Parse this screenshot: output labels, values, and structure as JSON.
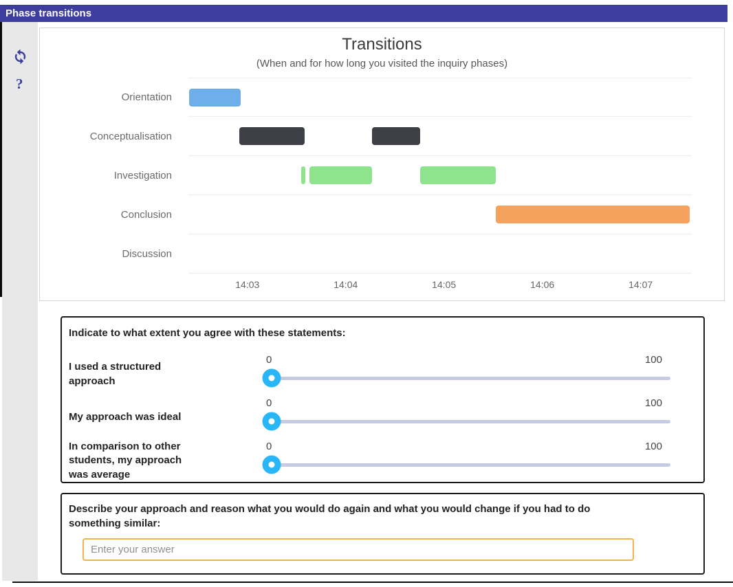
{
  "header": {
    "title": "Phase transitions"
  },
  "sidebar": {
    "refresh_icon": "refresh-icon",
    "help_label": "?"
  },
  "colors": {
    "header_bg": "#3d3d9e",
    "accent_indigo": "#3d3d9e",
    "slider_handle": "#29b6f6",
    "slider_track": "#c5cbe3",
    "input_border": "#f2b34c"
  },
  "chart_data": {
    "type": "gantt",
    "title": "Transitions",
    "subtitle": "(When and for how long you visited the inquiry phases)",
    "categories": [
      "Orientation",
      "Conceptualisation",
      "Investigation",
      "Conclusion",
      "Discussion"
    ],
    "x_ticks": [
      {
        "label": "14:03",
        "t": 3
      },
      {
        "label": "14:04",
        "t": 4
      },
      {
        "label": "14:05",
        "t": 5
      },
      {
        "label": "14:06",
        "t": 6
      },
      {
        "label": "14:07",
        "t": 7
      }
    ],
    "x_range": [
      2.4,
      7.52
    ],
    "x_unit": "minutes after 14:00",
    "bars": [
      {
        "row": 0,
        "category": "Orientation",
        "start": 2.41,
        "end": 2.93,
        "color": "#6eaee9"
      },
      {
        "row": 1,
        "category": "Conceptualisation",
        "start": 2.92,
        "end": 3.58,
        "color": "#3c4046"
      },
      {
        "row": 1,
        "category": "Conceptualisation",
        "start": 4.27,
        "end": 4.76,
        "color": "#3c4046"
      },
      {
        "row": 2,
        "category": "Investigation",
        "start": 3.55,
        "end": 3.59,
        "color": "#8de48d"
      },
      {
        "row": 2,
        "category": "Investigation",
        "start": 3.63,
        "end": 4.27,
        "color": "#8de48d"
      },
      {
        "row": 2,
        "category": "Investigation",
        "start": 4.76,
        "end": 5.53,
        "color": "#8de48d"
      },
      {
        "row": 3,
        "category": "Conclusion",
        "start": 5.53,
        "end": 7.5,
        "color": "#f4a25e"
      }
    ]
  },
  "survey": {
    "title": "Indicate to what extent you agree with these statements:",
    "min_label": "0",
    "max_label": "100",
    "items": [
      {
        "label": "I used a structured approach",
        "value": 0
      },
      {
        "label": "My approach was ideal",
        "value": 0
      },
      {
        "label": "In comparison to other students, my approach was average",
        "value": 0
      }
    ]
  },
  "answer": {
    "title": "Describe your approach and reason what you would do again and what you would change if you had to do something similar:",
    "placeholder": "Enter your answer",
    "value": ""
  }
}
